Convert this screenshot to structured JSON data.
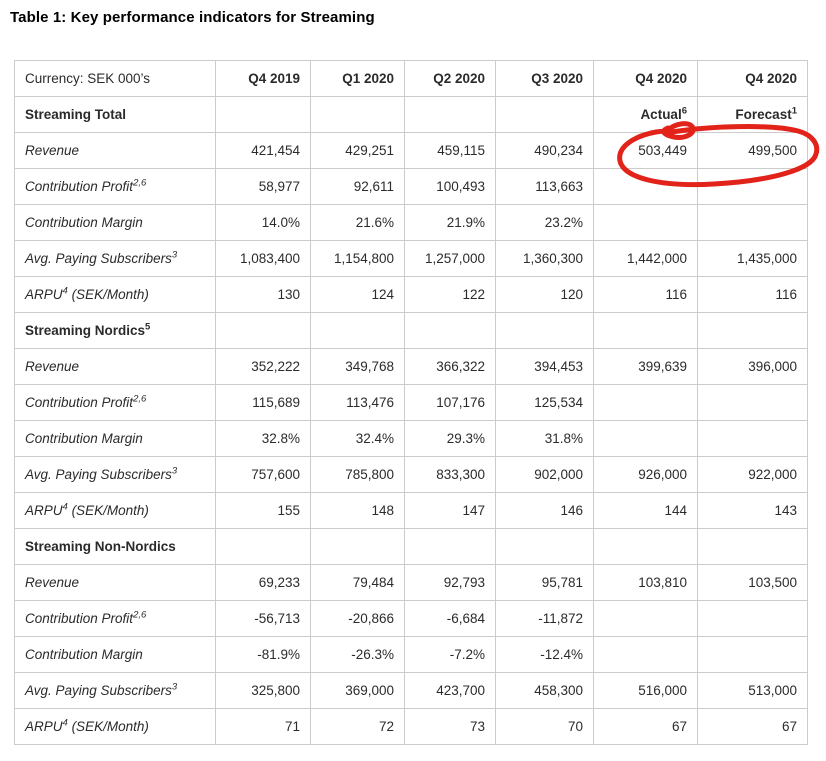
{
  "title": "Table 1: Key performance indicators for Streaming",
  "table": {
    "corner_label": "Currency: SEK 000’s",
    "columns": [
      "Q4 2019",
      "Q1 2020",
      "Q2 2020",
      "Q3 2020",
      "Q4 2020",
      "Q4 2020"
    ],
    "sections": [
      {
        "title": "Streaming Total",
        "title_sup": "",
        "sublabels": [
          {
            "text": "",
            "sup": ""
          },
          {
            "text": "",
            "sup": ""
          },
          {
            "text": "",
            "sup": ""
          },
          {
            "text": "",
            "sup": ""
          },
          {
            "text": "Actual",
            "sup": "6"
          },
          {
            "text": "Forecast",
            "sup": "1"
          }
        ],
        "rows": [
          {
            "label": "Revenue",
            "sup": "",
            "suffix": "",
            "values": [
              "421,454",
              "429,251",
              "459,115",
              "490,234",
              "503,449",
              "499,500"
            ]
          },
          {
            "label": "Contribution Profit",
            "sup": "2,6",
            "suffix": "",
            "values": [
              "58,977",
              "92,611",
              "100,493",
              "113,663",
              "",
              ""
            ]
          },
          {
            "label": "Contribution Margin",
            "sup": "",
            "suffix": "",
            "values": [
              "14.0%",
              "21.6%",
              "21.9%",
              "23.2%",
              "",
              ""
            ]
          },
          {
            "label": "Avg. Paying Subscribers",
            "sup": "3",
            "suffix": "",
            "values": [
              "1,083,400",
              "1,154,800",
              "1,257,000",
              "1,360,300",
              "1,442,000",
              "1,435,000"
            ]
          },
          {
            "label": "ARPU",
            "sup": "4",
            "suffix": " (SEK/Month)",
            "values": [
              "130",
              "124",
              "122",
              "120",
              "116",
              "116"
            ]
          }
        ]
      },
      {
        "title": "Streaming Nordics",
        "title_sup": "5",
        "sublabels": [
          {
            "text": "",
            "sup": ""
          },
          {
            "text": "",
            "sup": ""
          },
          {
            "text": "",
            "sup": ""
          },
          {
            "text": "",
            "sup": ""
          },
          {
            "text": "",
            "sup": ""
          },
          {
            "text": "",
            "sup": ""
          }
        ],
        "rows": [
          {
            "label": "Revenue",
            "sup": "",
            "suffix": "",
            "values": [
              "352,222",
              "349,768",
              "366,322",
              "394,453",
              "399,639",
              "396,000"
            ]
          },
          {
            "label": "Contribution Profit",
            "sup": "2,6",
            "suffix": "",
            "values": [
              "115,689",
              "113,476",
              "107,176",
              "125,534",
              "",
              ""
            ]
          },
          {
            "label": "Contribution Margin",
            "sup": "",
            "suffix": "",
            "values": [
              "32.8%",
              "32.4%",
              "29.3%",
              "31.8%",
              "",
              ""
            ]
          },
          {
            "label": "Avg. Paying Subscribers",
            "sup": "3",
            "suffix": "",
            "values": [
              "757,600",
              "785,800",
              "833,300",
              "902,000",
              "926,000",
              "922,000"
            ]
          },
          {
            "label": "ARPU",
            "sup": "4",
            "suffix": " (SEK/Month)",
            "values": [
              "155",
              "148",
              "147",
              "146",
              "144",
              "143"
            ]
          }
        ]
      },
      {
        "title": "Streaming Non-Nordics",
        "title_sup": "",
        "sublabels": [
          {
            "text": "",
            "sup": ""
          },
          {
            "text": "",
            "sup": ""
          },
          {
            "text": "",
            "sup": ""
          },
          {
            "text": "",
            "sup": ""
          },
          {
            "text": "",
            "sup": ""
          },
          {
            "text": "",
            "sup": ""
          }
        ],
        "rows": [
          {
            "label": "Revenue",
            "sup": "",
            "suffix": "",
            "values": [
              "69,233",
              "79,484",
              "92,793",
              "95,781",
              "103,810",
              "103,500"
            ]
          },
          {
            "label": "Contribution Profit",
            "sup": "2,6",
            "suffix": "",
            "values": [
              "-56,713",
              "-20,866",
              "-6,684",
              "-11,872",
              "",
              ""
            ]
          },
          {
            "label": "Contribution Margin",
            "sup": "",
            "suffix": "",
            "values": [
              "-81.9%",
              "-26.3%",
              "-7.2%",
              "-12.4%",
              "",
              ""
            ]
          },
          {
            "label": "Avg. Paying Subscribers",
            "sup": "3",
            "suffix": "",
            "values": [
              "325,800",
              "369,000",
              "423,700",
              "458,300",
              "516,000",
              "513,000"
            ]
          },
          {
            "label": "ARPU",
            "sup": "4",
            "suffix": " (SEK/Month)",
            "values": [
              "71",
              "72",
              "73",
              "70",
              "67",
              "67"
            ]
          }
        ]
      }
    ]
  },
  "annotation": {
    "type": "hand-drawn-ellipse",
    "color": "#e2231a",
    "circled_values": [
      "503,449",
      "499,500"
    ]
  }
}
